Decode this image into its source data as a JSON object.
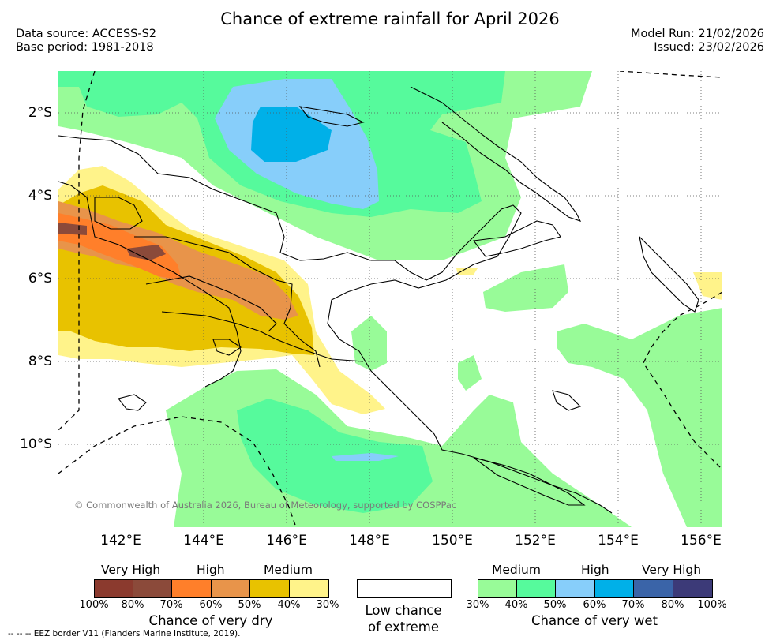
{
  "title": "Chance of extreme rainfall for April 2026",
  "meta": {
    "data_source": "Data source: ACCESS-S2",
    "base_period": "Base period: 1981-2018",
    "model_run": "Model Run: 21/02/2026",
    "issued": "Issued: 23/02/2026"
  },
  "axes": {
    "lat_labels": [
      "2°S",
      "4°S",
      "6°S",
      "8°S",
      "10°S"
    ],
    "lon_labels": [
      "142°E",
      "144°E",
      "146°E",
      "148°E",
      "150°E",
      "152°E",
      "154°E",
      "156°E"
    ]
  },
  "copyright": "© Commonwealth of Australia 2026, Bureau of Meteorology, supported by COSPPac",
  "legend": {
    "dry": {
      "levels": [
        "Very High",
        "High",
        "Medium"
      ],
      "colors": [
        "#8b3a2e",
        "#8b4a3a",
        "#ff7f2a",
        "#e8944a",
        "#e8c200",
        "#fff38a"
      ],
      "percents": [
        "100%",
        "80%",
        "70%",
        "60%",
        "50%",
        "40%",
        "30%"
      ],
      "caption": "Chance of very dry"
    },
    "low": {
      "caption_line1": "Low chance",
      "caption_line2": "of extreme",
      "color": "#ffffff"
    },
    "wet": {
      "levels": [
        "Medium",
        "High",
        "Very High"
      ],
      "colors": [
        "#98fb98",
        "#56fa9c",
        "#87cefa",
        "#00b0e8",
        "#3a64a8",
        "#3c3a78"
      ],
      "percents": [
        "30%",
        "40%",
        "50%",
        "60%",
        "70%",
        "80%",
        "100%"
      ],
      "caption": "Chance of very wet"
    }
  },
  "eez_note": "--  --  -- EEZ border V11 (Flanders Marine Institute, 2019)."
}
